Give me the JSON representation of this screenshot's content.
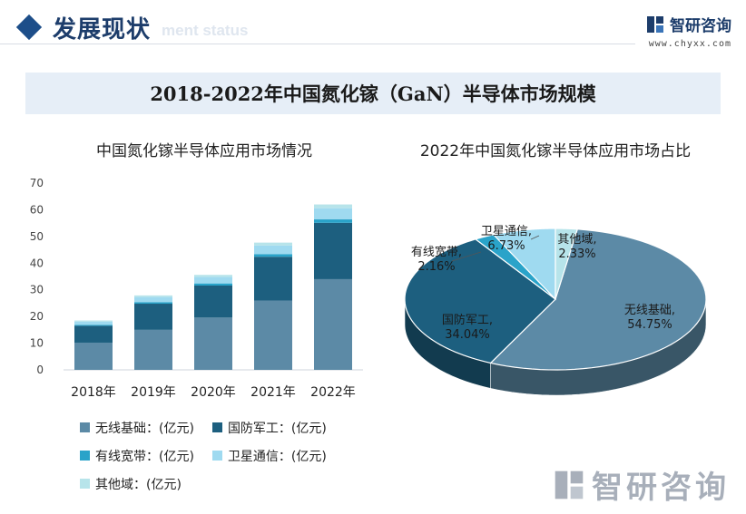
{
  "header": {
    "title": "发展现状",
    "ghost_text": "ment status",
    "brand_name": "智研咨询",
    "brand_url": "www.chyxx.com"
  },
  "banner_title": "2018-2022年中国氮化镓（GaN）半导体市场规模",
  "watermark": "智研咨询",
  "colors": {
    "wireless": "#5c8aa6",
    "defense": "#1d5f7f",
    "broadband": "#2aa3c9",
    "satellite": "#9fdaf0",
    "other": "#b7e4ea",
    "brand": "#1d3d6b"
  },
  "legend": [
    {
      "key": "wireless",
      "label": "无线基础：(亿元)"
    },
    {
      "key": "defense",
      "label": "国防军工：(亿元)"
    },
    {
      "key": "broadband",
      "label": "有线宽带：(亿元)"
    },
    {
      "key": "satellite",
      "label": "卫星通信：(亿元)"
    },
    {
      "key": "other",
      "label": "其他域：(亿元)"
    }
  ],
  "chart_data": [
    {
      "type": "bar",
      "stacked": true,
      "title": "中国氮化镓半导体应用市场情况",
      "categories": [
        "2018年",
        "2019年",
        "2020年",
        "2021年",
        "2022年"
      ],
      "ylim": [
        0,
        70
      ],
      "yticks": [
        0,
        10,
        20,
        30,
        40,
        50,
        60,
        70
      ],
      "series": [
        {
          "name": "无线基础：(亿元)",
          "key": "wireless",
          "values": [
            10.2,
            15.0,
            19.6,
            26.0,
            34.0
          ]
        },
        {
          "name": "国防军工：(亿元)",
          "key": "defense",
          "values": [
            6.3,
            9.8,
            12.0,
            16.4,
            21.1
          ]
        },
        {
          "name": "有线宽带：(亿元)",
          "key": "broadband",
          "values": [
            0.4,
            0.6,
            0.8,
            1.0,
            1.3
          ]
        },
        {
          "name": "卫星通信：(亿元)",
          "key": "satellite",
          "values": [
            1.2,
            1.9,
            2.4,
            3.2,
            4.2
          ]
        },
        {
          "name": "其他域：(亿元)",
          "key": "other",
          "values": [
            0.4,
            0.6,
            0.8,
            1.1,
            1.4
          ]
        }
      ]
    },
    {
      "type": "pie",
      "title": "2022年中国氮化镓半导体应用市场占比",
      "slices": [
        {
          "key": "wireless",
          "name": "无线基础,",
          "value": 54.75,
          "label": "54.75%"
        },
        {
          "key": "defense",
          "name": "国防军工,",
          "value": 34.04,
          "label": "34.04%"
        },
        {
          "key": "broadband",
          "name": "有线宽带,",
          "value": 2.16,
          "label": "2.16%"
        },
        {
          "key": "satellite",
          "name": "卫星通信,",
          "value": 6.73,
          "label": "6.73%"
        },
        {
          "key": "other",
          "name": "其他域,",
          "value": 2.33,
          "label": "2.33%"
        }
      ]
    }
  ]
}
